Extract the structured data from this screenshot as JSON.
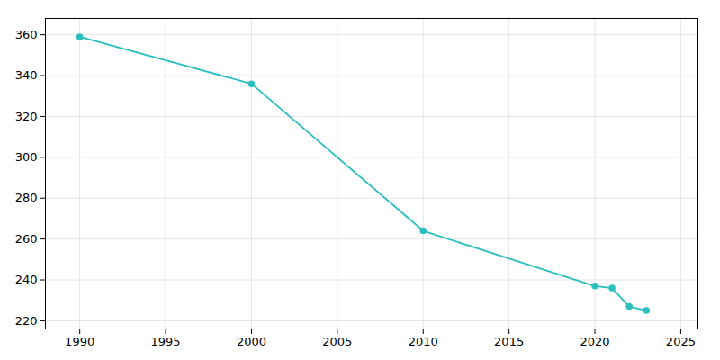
{
  "chart_data": {
    "type": "line",
    "x": [
      1990,
      2000,
      2010,
      2020,
      2021,
      2022,
      2023
    ],
    "values": [
      359,
      336,
      264,
      237,
      236,
      227,
      225
    ],
    "color": "#2abfbf",
    "marker": "circle",
    "xlim": [
      1988,
      2026
    ],
    "xticks": [
      1990,
      1995,
      2000,
      2005,
      2010,
      2015,
      2020,
      2025
    ],
    "ylim": [
      216,
      368
    ],
    "yticks": [
      220,
      240,
      260,
      280,
      300,
      320,
      340,
      360
    ],
    "grid": true
  }
}
